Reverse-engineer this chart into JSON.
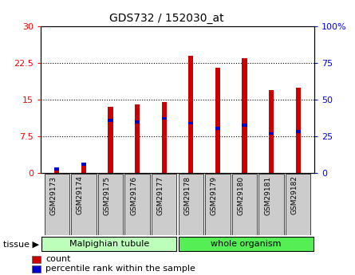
{
  "title": "GDS732 / 152030_at",
  "categories": [
    "GSM29173",
    "GSM29174",
    "GSM29175",
    "GSM29176",
    "GSM29177",
    "GSM29178",
    "GSM29179",
    "GSM29180",
    "GSM29181",
    "GSM29182"
  ],
  "count_values": [
    1.0,
    2.2,
    13.5,
    14.0,
    14.5,
    24.0,
    21.5,
    23.5,
    17.0,
    17.5
  ],
  "percentile_left": [
    0.9,
    1.9,
    10.8,
    10.5,
    11.2,
    10.2,
    9.2,
    9.8,
    8.1,
    8.5
  ],
  "percentile_pct": [
    3,
    7,
    36,
    35,
    37,
    34,
    31,
    33,
    27,
    28
  ],
  "tissue_groups": [
    {
      "label": "Malpighian tubule",
      "start": 0,
      "end": 5,
      "color": "#bbffbb"
    },
    {
      "label": "whole organism",
      "start": 5,
      "end": 10,
      "color": "#55ee55"
    }
  ],
  "ylim_left": [
    0,
    30
  ],
  "ylim_right": [
    0,
    100
  ],
  "yticks_left": [
    0,
    7.5,
    15,
    22.5,
    30
  ],
  "yticks_right": [
    0,
    25,
    50,
    75,
    100
  ],
  "bar_width": 0.18,
  "count_color": "#cc0000",
  "percentile_color": "#0000cc",
  "grid_color": "#000000",
  "plot_bg_color": "#ffffff",
  "legend_count": "count",
  "legend_percentile": "percentile rank within the sample",
  "tissue_label": "tissue"
}
